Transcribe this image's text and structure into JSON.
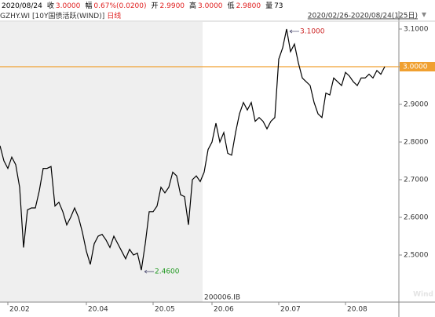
{
  "header": {
    "date": "2020/08/24",
    "items": [
      {
        "label": "收",
        "value": "3.0000"
      },
      {
        "label": "幅",
        "value": "0.67%(0.0200)"
      },
      {
        "label": "开",
        "value": "2.9900"
      },
      {
        "label": "高",
        "value": "3.0000"
      },
      {
        "label": "低",
        "value": "2.9800"
      },
      {
        "label": "量",
        "value": "73"
      }
    ],
    "code": "GZHY.WI",
    "name": "[10Y国债活跃(WIND)]",
    "period": "日线",
    "range": "2020/02/26-2020/08/24(125日)"
  },
  "footer_code": "200006.IB",
  "watermark": "Wind",
  "chart_data": {
    "type": "line",
    "color": "#000000",
    "categories": [
      null,
      null,
      "20.02",
      null,
      null,
      null,
      null,
      null,
      null,
      null,
      null,
      null,
      null,
      null,
      null,
      null,
      null,
      null,
      null,
      null,
      null,
      null,
      "20.04",
      null,
      null,
      null,
      null,
      null,
      null,
      null,
      null,
      null,
      null,
      null,
      null,
      null,
      null,
      null,
      null,
      "20.05",
      null,
      null,
      null,
      null,
      null,
      null,
      null,
      null,
      null,
      null,
      null,
      null,
      null,
      null,
      "20.06",
      null,
      null,
      null,
      null,
      null,
      null,
      null,
      null,
      null,
      null,
      null,
      null,
      null,
      null,
      null,
      null,
      "20.07",
      null,
      null,
      null,
      null,
      null,
      null,
      null,
      null,
      null,
      null,
      null,
      null,
      null,
      null,
      null,
      null,
      "20.08",
      null,
      null,
      null,
      null,
      null,
      null,
      null,
      null,
      null,
      null
    ],
    "values": [
      2.79,
      2.75,
      2.73,
      2.76,
      2.74,
      2.68,
      2.52,
      2.62,
      2.625,
      2.625,
      2.67,
      2.73,
      2.73,
      2.735,
      2.63,
      2.64,
      2.615,
      2.58,
      2.6,
      2.625,
      2.6,
      2.56,
      2.51,
      2.475,
      2.53,
      2.55,
      2.555,
      2.54,
      2.52,
      2.55,
      2.53,
      2.51,
      2.49,
      2.515,
      2.5,
      2.505,
      2.46,
      2.53,
      2.615,
      2.615,
      2.63,
      2.68,
      2.665,
      2.68,
      2.72,
      2.71,
      2.66,
      2.655,
      2.58,
      2.7,
      2.71,
      2.695,
      2.72,
      2.78,
      2.8,
      2.85,
      2.8,
      2.825,
      2.77,
      2.765,
      2.825,
      2.875,
      2.905,
      2.885,
      2.905,
      2.855,
      2.865,
      2.855,
      2.835,
      2.855,
      2.865,
      3.02,
      3.05,
      3.1,
      3.04,
      3.06,
      3.01,
      2.97,
      2.96,
      2.95,
      2.905,
      2.875,
      2.865,
      2.93,
      2.925,
      2.97,
      2.96,
      2.95,
      2.985,
      2.975,
      2.96,
      2.95,
      2.97,
      2.97,
      2.98,
      2.97,
      2.99,
      2.98,
      3.0
    ],
    "ylim": [
      2.375,
      3.11875
    ],
    "yticks": [
      {
        "value": 2.5,
        "label": "2.5000"
      },
      {
        "value": 2.6,
        "label": "2.6000"
      },
      {
        "value": 2.7,
        "label": "2.7000"
      },
      {
        "value": 2.8,
        "label": "2.8000"
      },
      {
        "value": 2.9,
        "label": "2.9000"
      },
      {
        "value": 3.0,
        "label": "3.0000"
      },
      {
        "value": 3.1,
        "label": "3.1000"
      }
    ],
    "hline": {
      "value": 3.0,
      "label": "3.0000",
      "color": "#f0a030"
    },
    "annotations": [
      {
        "value": 3.1,
        "label": "3.1000",
        "color": "#cc2222"
      },
      {
        "value": 2.46,
        "label": "2.4600",
        "color": "#229922"
      }
    ]
  }
}
